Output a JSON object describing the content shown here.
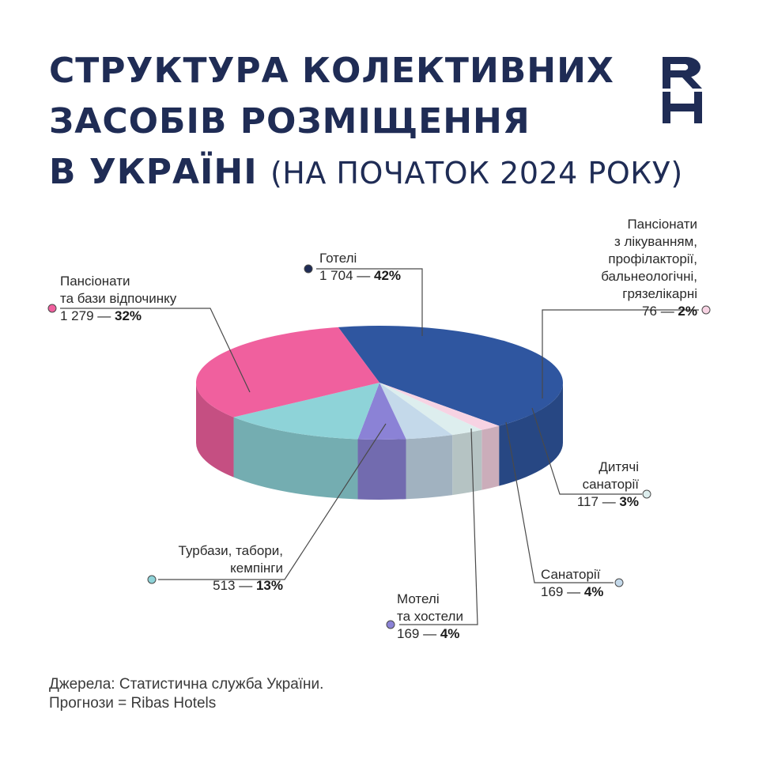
{
  "title": {
    "line1": "СТРУКТУРА КОЛЕКТИВНИХ",
    "line2": "ЗАСОБІВ РОЗМІЩЕННЯ",
    "line3": "В УКРАЇНІ",
    "line3_sub": "(НА ПОЧАТОК 2024 РОКУ)"
  },
  "logo": {
    "text": "RH",
    "icon": "rh-logo-icon"
  },
  "footer": {
    "line1": "Джерела: Статистична служба України.",
    "line2": "Прогнози = Ribas Hotels"
  },
  "chart_data": {
    "type": "pie",
    "style": "3d",
    "legend": "none",
    "slices": [
      {
        "name": "Готелі",
        "value": 1704,
        "value_text": "1 704",
        "percent_text": "42%",
        "color": "#2f56a0"
      },
      {
        "name": "Пансіонати з лікуванням, профілакторії, бальнеологічні, грязелікарні",
        "value": 76,
        "value_text": "76",
        "percent_text": "2%",
        "color": "#f7d3e3"
      },
      {
        "name": "Дитячі санаторії",
        "value": 117,
        "value_text": "117",
        "percent_text": "3%",
        "color": "#ddeeee"
      },
      {
        "name": "Санаторії",
        "value": 169,
        "value_text": "169",
        "percent_text": "4%",
        "color": "#c4d9ea"
      },
      {
        "name": "Мотелі та хостели",
        "value": 169,
        "value_text": "169",
        "percent_text": "4%",
        "color": "#8b82d6"
      },
      {
        "name": "Турбази, табори, кемпінги",
        "value": 513,
        "value_text": "513",
        "percent_text": "13%",
        "color": "#8ed3d8"
      },
      {
        "name": "Пансіонати та бази відпочинку",
        "value": 1279,
        "value_text": "1 279",
        "percent_text": "32%",
        "color": "#f0609e"
      }
    ],
    "labels": {
      "hotels": {
        "line1": "Готелі",
        "value": "1 704",
        "pct": "42%"
      },
      "treatment": {
        "line1": "Пансіонати",
        "line2": "з лікуванням,",
        "line3": "профілакторії,",
        "line4": "бальнеологічні,",
        "line5": "грязелікарні",
        "value": "76",
        "pct": "2%"
      },
      "children": {
        "line1": "Дитячі",
        "line2": "санаторії",
        "value": "117",
        "pct": "3%"
      },
      "sanatoria": {
        "line1": "Санаторії",
        "value": "169",
        "pct": "4%"
      },
      "motels": {
        "line1": "Мотелі",
        "line2": "та хостели",
        "value": "169",
        "pct": "4%"
      },
      "camps": {
        "line1": "Турбази, табори,",
        "line2": "кемпінги",
        "value": "513",
        "pct": "13%"
      },
      "boarding": {
        "line1": "Пансіонати",
        "line2": "та бази відпочинку",
        "value": "1 279",
        "pct": "32%"
      }
    }
  }
}
